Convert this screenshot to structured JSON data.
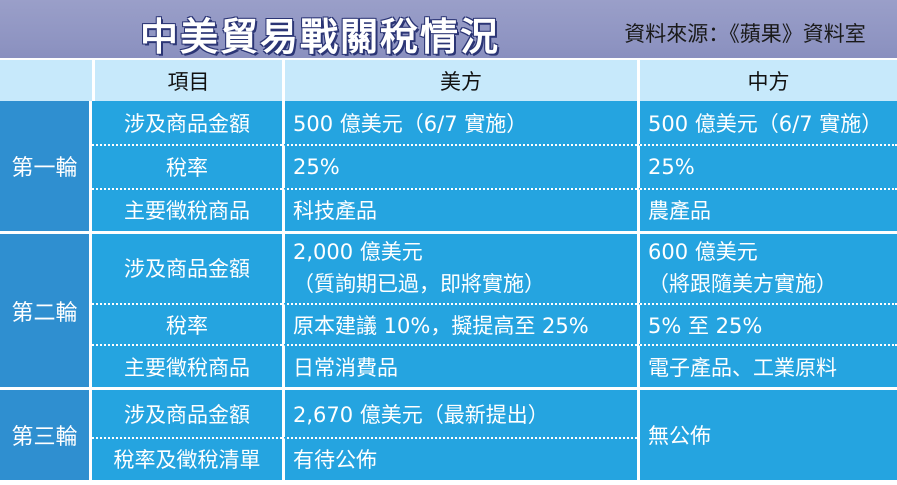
{
  "title": "中美貿易戰關稅情況",
  "source": "資料來源：《蘋果》資料室",
  "header": {
    "item": "項目",
    "us": "美方",
    "cn": "中方"
  },
  "rounds": [
    {
      "name": "第一輪",
      "rows": [
        {
          "label": "涉及商品金額",
          "us": "500 億美元（6/7 實施）",
          "cn": "500 億美元（6/7 實施）"
        },
        {
          "label": "稅率",
          "us": "25%",
          "cn": "25%"
        },
        {
          "label": "主要徵稅商品",
          "us": "科技產品",
          "cn": "農產品"
        }
      ]
    },
    {
      "name": "第二輪",
      "rows": [
        {
          "label": "涉及商品金額",
          "us": [
            "2,000 億美元",
            "（質詢期已過，即將實施）"
          ],
          "cn": [
            "600 億美元",
            "（將跟隨美方實施）"
          ]
        },
        {
          "label": "稅率",
          "us": "原本建議 10%，擬提高至 25%",
          "cn": "5% 至 25%"
        },
        {
          "label": "主要徵稅商品",
          "us": "日常消費品",
          "cn": "電子產品、工業原料"
        }
      ]
    },
    {
      "name": "第三輪",
      "rows": [
        {
          "label": "涉及商品金額",
          "us": "2,670 億美元（最新提出）"
        },
        {
          "label": "稅率及徵稅清單",
          "us": "有待公佈"
        }
      ],
      "cn": "無公佈"
    }
  ]
}
